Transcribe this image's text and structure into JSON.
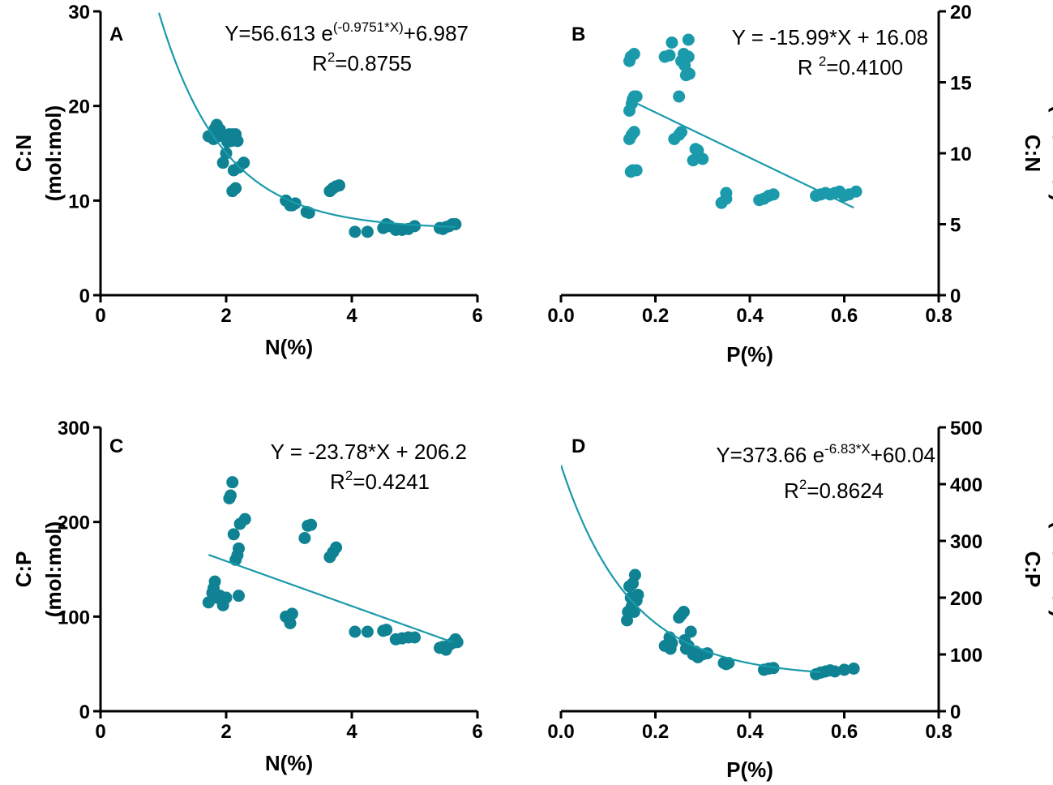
{
  "colors": {
    "point": "#0f8393",
    "point_light": "#1a9aab",
    "fit": "#1a9aab",
    "axis": "#000000"
  },
  "chart_data": [
    {
      "id": "A",
      "type": "scatter",
      "letter": "A",
      "xlabel": "N(%)",
      "ylabel_line1": "C:N",
      "ylabel_line2": "(mol:mol)",
      "xlim": [
        0,
        6
      ],
      "ylim": [
        0,
        30
      ],
      "xticks": [
        "0",
        "2",
        "4",
        "6"
      ],
      "xtick_values": [
        0,
        2,
        4,
        6
      ],
      "yticks": [
        "0",
        "10",
        "20",
        "30"
      ],
      "ytick_values": [
        0,
        10,
        20,
        30
      ],
      "yaxis_side": "left",
      "point_color": "#0f8393",
      "fit": {
        "kind": "exp",
        "a": 56.613,
        "b": 0.9751,
        "c": 6.987,
        "range": [
          0.93,
          5.65
        ]
      },
      "equation": {
        "main": "Y=56.613 e",
        "sup": "(-0.9751*X)",
        "tail": "+6.987"
      },
      "r2": {
        "label": "R",
        "sup": "2",
        "value": "=0.8755"
      },
      "points": [
        [
          1.72,
          16.8
        ],
        [
          1.8,
          16.5
        ],
        [
          1.82,
          17.6
        ],
        [
          1.85,
          18
        ],
        [
          1.9,
          17.5
        ],
        [
          1.88,
          16.8
        ],
        [
          1.95,
          14
        ],
        [
          2.0,
          15
        ],
        [
          2.02,
          16.2
        ],
        [
          2.05,
          17
        ],
        [
          2.08,
          16.3
        ],
        [
          2.1,
          17
        ],
        [
          2.12,
          13.2
        ],
        [
          2.15,
          17
        ],
        [
          2.18,
          16.3
        ],
        [
          2.2,
          13.5
        ],
        [
          2.28,
          14
        ],
        [
          2.1,
          11
        ],
        [
          2.15,
          11.3
        ],
        [
          2.95,
          10
        ],
        [
          3.02,
          9.5
        ],
        [
          3.05,
          9.5
        ],
        [
          3.1,
          9.7
        ],
        [
          3.28,
          8.8
        ],
        [
          3.32,
          8.7
        ],
        [
          3.65,
          11
        ],
        [
          3.7,
          11.3
        ],
        [
          3.75,
          11.5
        ],
        [
          3.8,
          11.6
        ],
        [
          4.05,
          6.7
        ],
        [
          4.25,
          6.7
        ],
        [
          4.5,
          7.1
        ],
        [
          4.55,
          7.5
        ],
        [
          4.6,
          7.3
        ],
        [
          4.7,
          6.9
        ],
        [
          4.8,
          6.9
        ],
        [
          4.9,
          7
        ],
        [
          5.0,
          7.3
        ],
        [
          5.4,
          7.1
        ],
        [
          5.45,
          7
        ],
        [
          5.5,
          7.2
        ],
        [
          5.55,
          7.3
        ],
        [
          5.6,
          7.5
        ],
        [
          5.65,
          7.5
        ]
      ]
    },
    {
      "id": "B",
      "type": "scatter",
      "letter": "B",
      "xlabel": "P(%)",
      "ylabel_line1": "C:N",
      "ylabel_line2": "(mol:mol)",
      "xlim": [
        0,
        0.8
      ],
      "ylim": [
        0,
        20
      ],
      "xticks": [
        "0.0",
        "0.2",
        "0.4",
        "0.6",
        "0.8"
      ],
      "xtick_values": [
        0,
        0.2,
        0.4,
        0.6,
        0.8
      ],
      "yticks": [
        "0",
        "5",
        "10",
        "15",
        "20"
      ],
      "ytick_values": [
        0,
        5,
        10,
        15,
        20
      ],
      "yaxis_side": "right",
      "point_color": "#1a9aab",
      "fit": {
        "kind": "linear",
        "m": -15.99,
        "c": 16.08,
        "range": [
          0.16,
          0.62
        ]
      },
      "equation": {
        "main": "Y = -15.99*X + 16.08",
        "sup": "",
        "tail": ""
      },
      "r2": {
        "label": "R ",
        "sup": "2",
        "value": "=0.4100"
      },
      "points": [
        [
          0.145,
          16.5
        ],
        [
          0.148,
          16.8
        ],
        [
          0.155,
          17
        ],
        [
          0.145,
          13
        ],
        [
          0.15,
          13.5
        ],
        [
          0.152,
          13.8
        ],
        [
          0.155,
          14
        ],
        [
          0.16,
          14
        ],
        [
          0.145,
          11
        ],
        [
          0.15,
          11.3
        ],
        [
          0.155,
          11.5
        ],
        [
          0.148,
          8.7
        ],
        [
          0.152,
          8.8
        ],
        [
          0.16,
          8.8
        ],
        [
          0.22,
          16.8
        ],
        [
          0.23,
          16.9
        ],
        [
          0.235,
          17.8
        ],
        [
          0.25,
          14
        ],
        [
          0.255,
          16.5
        ],
        [
          0.26,
          17
        ],
        [
          0.262,
          16.2
        ],
        [
          0.265,
          15.5
        ],
        [
          0.27,
          18
        ],
        [
          0.27,
          16.8
        ],
        [
          0.272,
          15.6
        ],
        [
          0.24,
          11
        ],
        [
          0.25,
          11.3
        ],
        [
          0.255,
          11.5
        ],
        [
          0.285,
          10.3
        ],
        [
          0.29,
          10.2
        ],
        [
          0.28,
          9.5
        ],
        [
          0.3,
          9.6
        ],
        [
          0.34,
          6.5
        ],
        [
          0.35,
          7.2
        ],
        [
          0.35,
          6.8
        ],
        [
          0.42,
          6.7
        ],
        [
          0.43,
          6.8
        ],
        [
          0.44,
          7
        ],
        [
          0.45,
          7.1
        ],
        [
          0.54,
          7
        ],
        [
          0.55,
          7.1
        ],
        [
          0.56,
          7.2
        ],
        [
          0.57,
          7.1
        ],
        [
          0.58,
          7.2
        ],
        [
          0.59,
          7.3
        ],
        [
          0.6,
          7
        ],
        [
          0.61,
          7.1
        ],
        [
          0.625,
          7.3
        ]
      ]
    },
    {
      "id": "C",
      "type": "scatter",
      "letter": "C",
      "xlabel": "N(%)",
      "ylabel_line1": "C:P",
      "ylabel_line2": "(mol:mol)",
      "xlim": [
        0,
        6
      ],
      "ylim": [
        0,
        300
      ],
      "xticks": [
        "0",
        "2",
        "4",
        "6"
      ],
      "xtick_values": [
        0,
        2,
        4,
        6
      ],
      "yticks": [
        "0",
        "100",
        "200",
        "300"
      ],
      "ytick_values": [
        0,
        100,
        200,
        300
      ],
      "yaxis_side": "left",
      "point_color": "#0f8393",
      "fit": {
        "kind": "linear",
        "m": -23.78,
        "c": 206.2,
        "range": [
          1.72,
          5.6
        ]
      },
      "equation": {
        "main": "Y = -23.78*X + 206.2",
        "sup": "",
        "tail": ""
      },
      "r2": {
        "label": "R",
        "sup": "2",
        "value": "=0.4241"
      },
      "points": [
        [
          1.72,
          115
        ],
        [
          1.78,
          125
        ],
        [
          1.8,
          130
        ],
        [
          1.82,
          137
        ],
        [
          1.85,
          120
        ],
        [
          1.9,
          122
        ],
        [
          1.95,
          112
        ],
        [
          2.0,
          120
        ],
        [
          2.05,
          225
        ],
        [
          2.07,
          228
        ],
        [
          2.1,
          242
        ],
        [
          2.12,
          187
        ],
        [
          2.15,
          160
        ],
        [
          2.18,
          165
        ],
        [
          2.2,
          172
        ],
        [
          2.22,
          198
        ],
        [
          2.3,
          203
        ],
        [
          2.2,
          122
        ],
        [
          2.95,
          100
        ],
        [
          3.0,
          97
        ],
        [
          3.02,
          93
        ],
        [
          3.05,
          103
        ],
        [
          3.25,
          183
        ],
        [
          3.3,
          196
        ],
        [
          3.35,
          197
        ],
        [
          3.65,
          163
        ],
        [
          3.7,
          168
        ],
        [
          3.75,
          173
        ],
        [
          4.05,
          84
        ],
        [
          4.25,
          84
        ],
        [
          4.5,
          85
        ],
        [
          4.55,
          86
        ],
        [
          4.7,
          76
        ],
        [
          4.8,
          77
        ],
        [
          4.9,
          78
        ],
        [
          5.0,
          78
        ],
        [
          5.4,
          67
        ],
        [
          5.45,
          68
        ],
        [
          5.5,
          65
        ],
        [
          5.55,
          70
        ],
        [
          5.6,
          72
        ],
        [
          5.65,
          76
        ],
        [
          5.68,
          73
        ]
      ]
    },
    {
      "id": "D",
      "type": "scatter",
      "letter": "D",
      "xlabel": "P(%)",
      "ylabel_line1": "C:P",
      "ylabel_line2": "(mol:mol)",
      "xlim": [
        0,
        0.8
      ],
      "ylim": [
        0,
        500
      ],
      "xticks": [
        "0.0",
        "0.2",
        "0.4",
        "0.6",
        "0.8"
      ],
      "xtick_values": [
        0,
        0.2,
        0.4,
        0.6,
        0.8
      ],
      "yticks": [
        "0",
        "100",
        "200",
        "300",
        "400",
        "500"
      ],
      "ytick_values": [
        0,
        100,
        200,
        300,
        400,
        500
      ],
      "yaxis_side": "right",
      "point_color": "#0f8393",
      "fit": {
        "kind": "exp",
        "a": 373.66,
        "b": 6.83,
        "c": 60.04,
        "range": [
          0.0,
          0.55
        ]
      },
      "equation": {
        "main": "Y=373.66 e",
        "sup": "-6.83*X",
        "tail": "+60.04"
      },
      "r2": {
        "label": "R",
        "sup": "2",
        "value": "=0.8624"
      },
      "points": [
        [
          0.14,
          160
        ],
        [
          0.142,
          175
        ],
        [
          0.145,
          220
        ],
        [
          0.148,
          200
        ],
        [
          0.15,
          185
        ],
        [
          0.152,
          225
        ],
        [
          0.155,
          175
        ],
        [
          0.157,
          240
        ],
        [
          0.16,
          195
        ],
        [
          0.163,
          205
        ],
        [
          0.22,
          115
        ],
        [
          0.23,
          130
        ],
        [
          0.232,
          110
        ],
        [
          0.235,
          120
        ],
        [
          0.25,
          165
        ],
        [
          0.255,
          170
        ],
        [
          0.26,
          175
        ],
        [
          0.262,
          125
        ],
        [
          0.265,
          110
        ],
        [
          0.27,
          115
        ],
        [
          0.275,
          140
        ],
        [
          0.28,
          100
        ],
        [
          0.285,
          105
        ],
        [
          0.29,
          95
        ],
        [
          0.3,
          100
        ],
        [
          0.31,
          102
        ],
        [
          0.345,
          85
        ],
        [
          0.35,
          83
        ],
        [
          0.355,
          85
        ],
        [
          0.43,
          73
        ],
        [
          0.44,
          75
        ],
        [
          0.45,
          76
        ],
        [
          0.54,
          65
        ],
        [
          0.55,
          68
        ],
        [
          0.56,
          70
        ],
        [
          0.57,
          72
        ],
        [
          0.58,
          70
        ],
        [
          0.6,
          73
        ],
        [
          0.62,
          75
        ]
      ]
    }
  ]
}
